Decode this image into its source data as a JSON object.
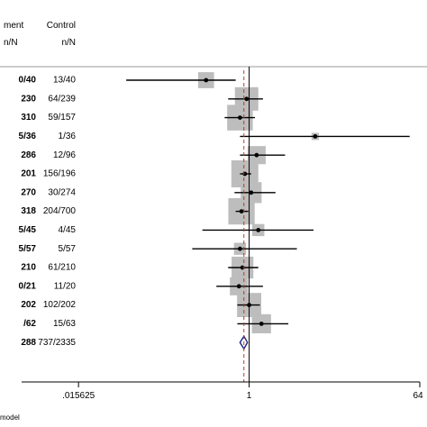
{
  "header": {
    "group1_label": "ment",
    "group1_sub": "n/N",
    "group2_label": "Control",
    "group2_sub": "n/N"
  },
  "footer": {
    "note": "model"
  },
  "chart_data": {
    "type": "forest",
    "xscale": "log2",
    "xlim": [
      0.00390625,
      64
    ],
    "xticks": [
      {
        "value": 0.015625,
        "label": ".015625"
      },
      {
        "value": 1,
        "label": "1"
      },
      {
        "value": 64,
        "label": "64"
      }
    ],
    "reference_line": 1,
    "overall_line": 0.88,
    "rows": [
      {
        "treatment": "0/40",
        "control": "13/40",
        "est": 0.35,
        "lo": 0.05,
        "hi": 0.72,
        "w": 0.35
      },
      {
        "treatment": "230",
        "control": "64/239",
        "est": 0.94,
        "lo": 0.6,
        "hi": 1.4,
        "w": 0.75
      },
      {
        "treatment": "310",
        "control": "59/157",
        "est": 0.8,
        "lo": 0.55,
        "hi": 1.15,
        "w": 0.9
      },
      {
        "treatment": "5/36",
        "control": "1/36",
        "est": 5.0,
        "lo": 0.8,
        "hi": 50.0,
        "w": 0.05
      },
      {
        "treatment": "286",
        "control": "12/96",
        "est": 1.2,
        "lo": 0.8,
        "hi": 2.4,
        "w": 0.45
      },
      {
        "treatment": "201",
        "control": "156/196",
        "est": 0.9,
        "lo": 0.8,
        "hi": 1.05,
        "w": 1.0
      },
      {
        "treatment": "270",
        "control": "30/274",
        "est": 1.05,
        "lo": 0.7,
        "hi": 1.9,
        "w": 0.6
      },
      {
        "treatment": "318",
        "control": "204/700",
        "est": 0.83,
        "lo": 0.72,
        "hi": 0.98,
        "w": 0.95
      },
      {
        "treatment": "5/45",
        "control": "4/45",
        "est": 1.25,
        "lo": 0.32,
        "hi": 4.8,
        "w": 0.2
      },
      {
        "treatment": "5/57",
        "control": "5/57",
        "est": 0.8,
        "lo": 0.25,
        "hi": 3.2,
        "w": 0.2
      },
      {
        "treatment": "210",
        "control": "61/210",
        "est": 0.85,
        "lo": 0.6,
        "hi": 1.25,
        "w": 0.65
      },
      {
        "treatment": "0/21",
        "control": "11/20",
        "est": 0.78,
        "lo": 0.45,
        "hi": 1.4,
        "w": 0.45
      },
      {
        "treatment": "202",
        "control": "102/202",
        "est": 1.0,
        "lo": 0.75,
        "hi": 1.3,
        "w": 0.8
      },
      {
        "treatment": "/62",
        "control": "15/63",
        "est": 1.35,
        "lo": 0.75,
        "hi": 2.6,
        "w": 0.5
      }
    ],
    "overall": {
      "treatment": "288",
      "control": "737/2335",
      "est": 0.88,
      "lo": 0.8,
      "hi": 0.96
    }
  }
}
